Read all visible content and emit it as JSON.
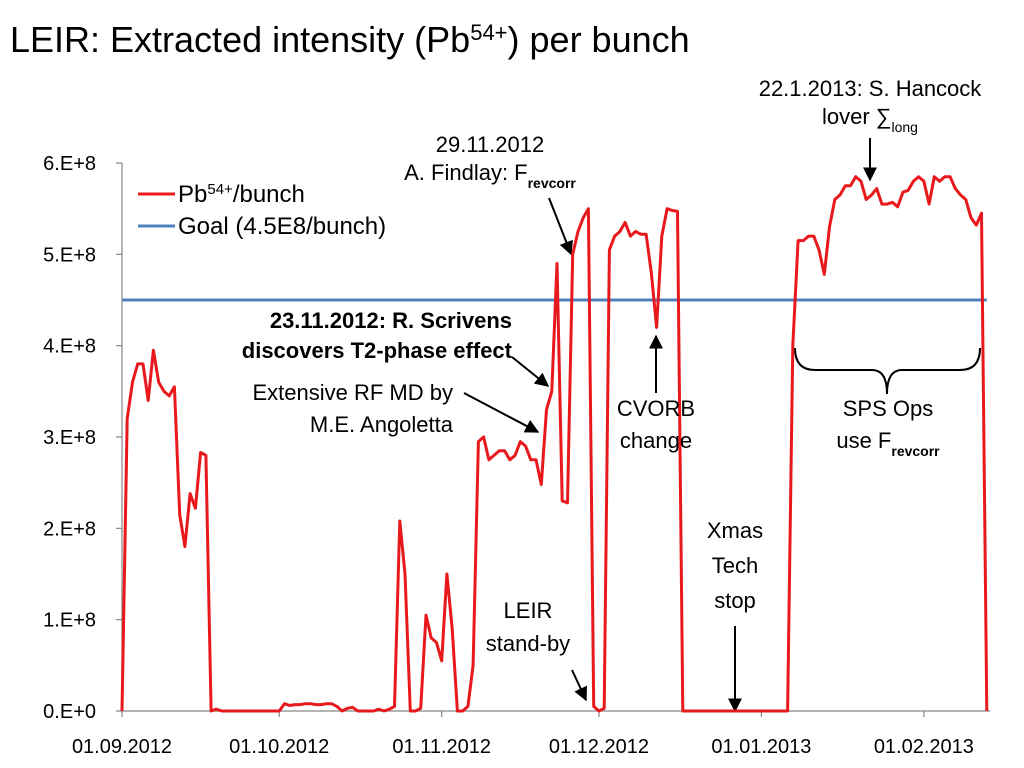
{
  "chart_data": {
    "type": "line",
    "title": [
      {
        "text": "LEIR: Extracted intensity (Pb"
      },
      {
        "text": "54+",
        "script": "super"
      },
      {
        "text": ") per bunch"
      }
    ],
    "xlim": [
      "01.09.2012",
      "14.02.2013"
    ],
    "xticks": [
      "01.09.2012",
      "01.10.2012",
      "01.11.2012",
      "01.12.2012",
      "01.01.2013",
      "01.02.2013"
    ],
    "ylim": [
      0,
      600000000
    ],
    "yticks": [
      {
        "value": 0,
        "label": "0.E+0"
      },
      {
        "value": 100000000,
        "label": "1.E+8"
      },
      {
        "value": 200000000,
        "label": "2.E+8"
      },
      {
        "value": 300000000,
        "label": "3.E+8"
      },
      {
        "value": 400000000,
        "label": "4.E+8"
      },
      {
        "value": 500000000,
        "label": "5.E+8"
      },
      {
        "value": 600000000,
        "label": "6.E+8"
      }
    ],
    "legend": "upper left",
    "series": [
      {
        "name": [
          {
            "text": "Pb"
          },
          {
            "text": "54+",
            "script": "super"
          },
          {
            "text": "/bunch"
          }
        ],
        "color": "#e8191c",
        "x": [
          "01.09.2012",
          "02.09.2012",
          "03.09.2012",
          "04.09.2012",
          "05.09.2012",
          "06.09.2012",
          "07.09.2012",
          "08.09.2012",
          "09.09.2012",
          "10.09.2012",
          "11.09.2012",
          "12.09.2012",
          "13.09.2012",
          "14.09.2012",
          "15.09.2012",
          "16.09.2012",
          "17.09.2012",
          "18.09.2012",
          "19.09.2012",
          "20.09.2012",
          "30.09.2012",
          "01.10.2012",
          "02.10.2012",
          "03.10.2012",
          "04.10.2012",
          "05.10.2012",
          "06.10.2012",
          "07.10.2012",
          "08.10.2012",
          "09.10.2012",
          "10.10.2012",
          "11.10.2012",
          "12.10.2012",
          "13.10.2012",
          "14.10.2012",
          "15.10.2012",
          "16.10.2012",
          "17.10.2012",
          "18.10.2012",
          "19.10.2012",
          "20.10.2012",
          "21.10.2012",
          "22.10.2012",
          "23.10.2012",
          "24.10.2012",
          "25.10.2012",
          "26.10.2012",
          "27.10.2012",
          "28.10.2012",
          "29.10.2012",
          "30.10.2012",
          "31.10.2012",
          "01.11.2012",
          "02.11.2012",
          "03.11.2012",
          "04.11.2012",
          "05.11.2012",
          "06.11.2012",
          "07.11.2012",
          "08.11.2012",
          "09.11.2012",
          "10.11.2012",
          "11.11.2012",
          "12.11.2012",
          "13.11.2012",
          "14.11.2012",
          "15.11.2012",
          "16.11.2012",
          "17.11.2012",
          "18.11.2012",
          "19.11.2012",
          "20.11.2012",
          "21.11.2012",
          "22.11.2012",
          "23.11.2012",
          "24.11.2012",
          "25.11.2012",
          "26.11.2012",
          "27.11.2012",
          "28.11.2012",
          "29.11.2012",
          "30.11.2012",
          "01.12.2012",
          "02.12.2012",
          "03.12.2012",
          "04.12.2012",
          "05.12.2012",
          "06.12.2012",
          "07.12.2012",
          "08.12.2012",
          "09.12.2012",
          "10.12.2012",
          "11.12.2012",
          "12.12.2012",
          "13.12.2012",
          "14.12.2012",
          "15.12.2012",
          "16.12.2012",
          "17.12.2012",
          "06.01.2013",
          "07.01.2013",
          "08.01.2013",
          "09.01.2013",
          "10.01.2013",
          "11.01.2013",
          "12.01.2013",
          "13.01.2013",
          "14.01.2013",
          "15.01.2013",
          "16.01.2013",
          "17.01.2013",
          "18.01.2013",
          "19.01.2013",
          "20.01.2013",
          "21.01.2013",
          "22.01.2013",
          "23.01.2013",
          "24.01.2013",
          "25.01.2013",
          "26.01.2013",
          "27.01.2013",
          "28.01.2013",
          "29.01.2013",
          "30.01.2013",
          "31.01.2013",
          "01.02.2013",
          "02.02.2013",
          "03.02.2013",
          "04.02.2013",
          "05.02.2013",
          "06.02.2013",
          "07.02.2013",
          "08.02.2013",
          "09.02.2013",
          "10.02.2013",
          "11.02.2013",
          "12.02.2013",
          "13.02.2013"
        ],
        "values": [
          0,
          320000000,
          360000000,
          380000000,
          380000000,
          340000000,
          395000000,
          360000000,
          350000000,
          345000000,
          355000000,
          215000000,
          180000000,
          238000000,
          222000000,
          283000000,
          280000000,
          0,
          2000000,
          0,
          0,
          0,
          8000000,
          6000000,
          7000000,
          7000000,
          8000000,
          8000000,
          7000000,
          7000000,
          8000000,
          8000000,
          5000000,
          0,
          3000000,
          4000000,
          0,
          0,
          0,
          0,
          2000000,
          0,
          2000000,
          5000000,
          208000000,
          150000000,
          0,
          0,
          3000000,
          105000000,
          80000000,
          75000000,
          55000000,
          150000000,
          90000000,
          0,
          0,
          5000000,
          50000000,
          295000000,
          300000000,
          275000000,
          280000000,
          285000000,
          285000000,
          275000000,
          280000000,
          295000000,
          290000000,
          275000000,
          275000000,
          248000000,
          330000000,
          350000000,
          490000000,
          230000000,
          228000000,
          500000000,
          525000000,
          540000000,
          550000000,
          5000000,
          0,
          3000000,
          505000000,
          520000000,
          525000000,
          535000000,
          520000000,
          525000000,
          522000000,
          522000000,
          480000000,
          420000000,
          520000000,
          550000000,
          548000000,
          547000000,
          0,
          0,
          400000000,
          515000000,
          515000000,
          520000000,
          520000000,
          505000000,
          478000000,
          530000000,
          560000000,
          565000000,
          575000000,
          575000000,
          585000000,
          580000000,
          560000000,
          565000000,
          572000000,
          555000000,
          555000000,
          557000000,
          552000000,
          568000000,
          570000000,
          580000000,
          585000000,
          580000000,
          555000000,
          585000000,
          580000000,
          585000000,
          585000000,
          572000000,
          565000000,
          560000000,
          540000000,
          532000000,
          545000000,
          0
        ]
      },
      {
        "name": [
          {
            "text": "Goal (4.5E8/bunch)"
          }
        ],
        "color": "#4f81bd",
        "x": [
          "01.09.2012",
          "13.02.2013"
        ],
        "values": [
          450000000,
          450000000
        ]
      }
    ],
    "annotations": [
      {
        "lines": [
          [
            {
              "text": "29.11.2012"
            }
          ],
          [
            {
              "text": "A. Findlay: F"
            },
            {
              "text": "revcorr",
              "script": "sub",
              "bold": true
            }
          ]
        ]
      },
      {
        "lines": [
          [
            {
              "text": "22.1.2013: S. Hancock"
            }
          ],
          [
            {
              "text": "lover "
            },
            {
              "text": "∑"
            },
            {
              "text": "long",
              "script": "sub"
            }
          ]
        ]
      },
      {
        "lines": [
          [
            {
              "text": "23.11.2012: R. Scrivens",
              "bold": true
            }
          ],
          [
            {
              "text": "discovers T2-phase effect",
              "bold": true
            }
          ]
        ]
      },
      {
        "lines": [
          [
            {
              "text": "Extensive RF MD by"
            }
          ],
          [
            {
              "text": "M.E. Angoletta"
            }
          ]
        ]
      },
      {
        "lines": [
          [
            {
              "text": "CVORB"
            }
          ],
          [
            {
              "text": "change"
            }
          ]
        ]
      },
      {
        "lines": [
          [
            {
              "text": "SPS Ops"
            }
          ],
          [
            {
              "text": "use F"
            },
            {
              "text": "revcorr",
              "script": "sub",
              "bold": true
            }
          ]
        ]
      },
      {
        "lines": [
          [
            {
              "text": "Xmas"
            }
          ],
          [
            {
              "text": "Tech"
            }
          ],
          [
            {
              "text": "stop"
            }
          ]
        ]
      },
      {
        "lines": [
          [
            {
              "text": "LEIR"
            }
          ],
          [
            {
              "text": "stand-by"
            }
          ]
        ]
      }
    ]
  }
}
